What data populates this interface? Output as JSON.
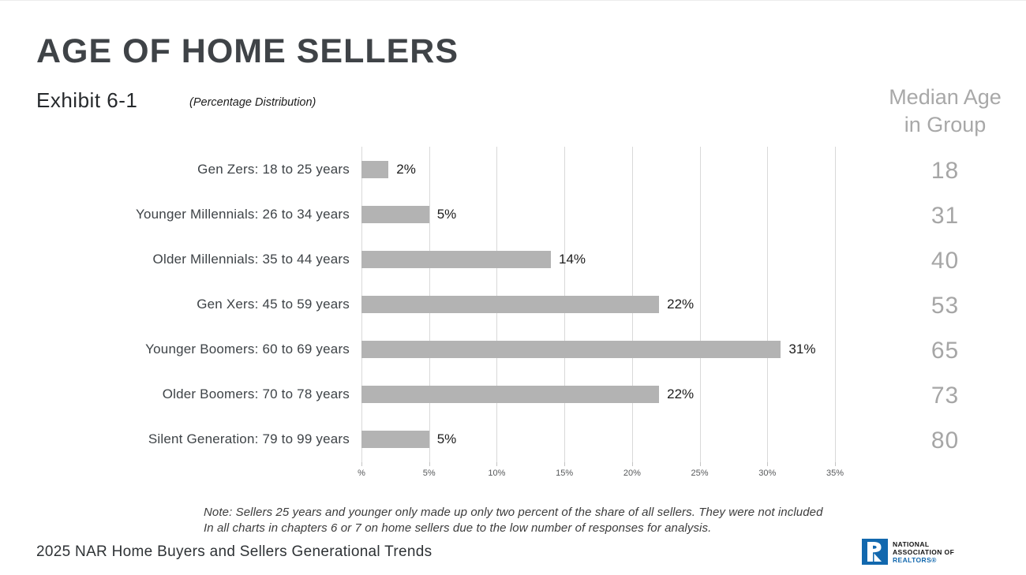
{
  "header": {
    "title": "AGE OF HOME SELLERS",
    "exhibit": "Exhibit 6-1",
    "subtitle": "(Percentage Distribution)",
    "median_header_line1": "Median Age",
    "median_header_line2": "in Group"
  },
  "chart_data": {
    "type": "bar",
    "orientation": "horizontal",
    "title": "AGE OF HOME SELLERS",
    "subtitle": "(Percentage Distribution)",
    "categories": [
      "Gen Zers: 18 to 25 years",
      "Younger Millennials: 26 to 34 years",
      "Older Millennials: 35 to 44 years",
      "Gen Xers: 45 to 59 years",
      "Younger Boomers: 60 to 69 years",
      "Older Boomers: 70 to 78 years",
      "Silent Generation: 79 to 99 years"
    ],
    "values": [
      2,
      5,
      14,
      22,
      31,
      22,
      5
    ],
    "value_labels": [
      "2%",
      "5%",
      "14%",
      "22%",
      "31%",
      "22%",
      "5%"
    ],
    "median_ages": [
      18,
      31,
      40,
      53,
      65,
      73,
      80
    ],
    "x_ticks": [
      "%",
      "5%",
      "10%",
      "15%",
      "20%",
      "25%",
      "30%",
      "35%"
    ],
    "x_tick_values": [
      0,
      5,
      10,
      15,
      20,
      25,
      30,
      35
    ],
    "xlim": [
      0,
      35
    ],
    "grid": true,
    "legend_position": "none",
    "bar_color": "#b3b3b3",
    "gridline_color": "#d9d9d9",
    "label_color": "#3e4347",
    "value_label_color": "#1c1c1c",
    "median_color": "#a6a6a6"
  },
  "note": {
    "line1": "Note: Sellers 25 years and younger only made up only two percent of the share of all sellers. They were not included",
    "line2": "In all charts in chapters 6 or 7 on home sellers due to the low number of responses for analysis."
  },
  "footer": {
    "source": "2025 NAR Home Buyers and Sellers Generational Trends",
    "logo": {
      "line1": "NATIONAL",
      "line2": "ASSOCIATION OF",
      "line3": "REALTORS®",
      "blue": "#1268ae"
    }
  }
}
